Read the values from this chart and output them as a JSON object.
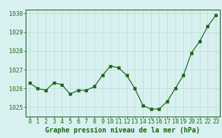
{
  "x": [
    0,
    1,
    2,
    3,
    4,
    5,
    6,
    7,
    8,
    9,
    10,
    11,
    12,
    13,
    14,
    15,
    16,
    17,
    18,
    19,
    20,
    21,
    22,
    23
  ],
  "y": [
    1026.3,
    1026.0,
    1025.9,
    1026.3,
    1026.2,
    1025.7,
    1025.9,
    1025.9,
    1026.1,
    1026.7,
    1027.2,
    1027.1,
    1026.7,
    1026.0,
    1025.1,
    1024.9,
    1024.9,
    1025.3,
    1026.0,
    1026.7,
    1027.9,
    1028.5,
    1029.3,
    1029.9
  ],
  "ylim": [
    1024.5,
    1030.2
  ],
  "yticks": [
    1025,
    1026,
    1027,
    1028,
    1029,
    1030
  ],
  "xlim": [
    -0.5,
    23.5
  ],
  "xticks": [
    0,
    1,
    2,
    3,
    4,
    5,
    6,
    7,
    8,
    9,
    10,
    11,
    12,
    13,
    14,
    15,
    16,
    17,
    18,
    19,
    20,
    21,
    22,
    23
  ],
  "xlabel": "Graphe pression niveau de la mer (hPa)",
  "line_color": "#1a6618",
  "marker_color": "#1a6618",
  "bg_color": "#d9f0f0",
  "grid_color": "#b8d8d8",
  "axis_color": "#1a6618",
  "tick_label_color": "#1a6618",
  "xlabel_color": "#1a6618",
  "xlabel_fontsize": 7.0,
  "tick_fontsize": 6.0
}
